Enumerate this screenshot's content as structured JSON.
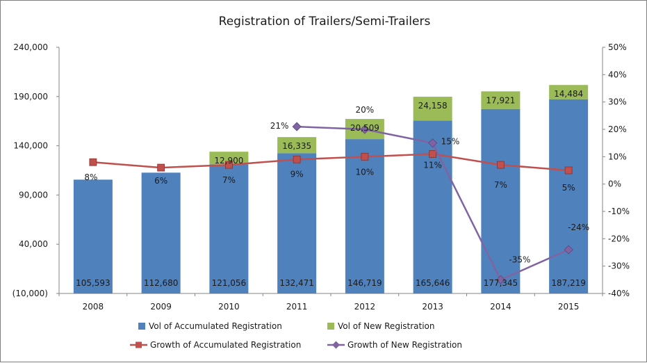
{
  "chart_data": {
    "type": "bar",
    "title": "Registration of Trailers/Semi-Trailers",
    "categories": [
      "2008",
      "2009",
      "2010",
      "2011",
      "2012",
      "2013",
      "2014",
      "2015"
    ],
    "left_axis": {
      "ylim": [
        -10000,
        240000
      ],
      "ticks": [
        -10000,
        40000,
        90000,
        140000,
        190000,
        240000
      ],
      "tick_labels": [
        "(10,000)",
        "40,000",
        "90,000",
        "140,000",
        "190,000",
        "240,000"
      ]
    },
    "right_axis": {
      "ylim": [
        -40,
        50
      ],
      "ticks": [
        -40,
        -30,
        -20,
        -10,
        0,
        10,
        20,
        30,
        40,
        50
      ],
      "tick_labels": [
        "-40%",
        "-30%",
        "-20%",
        "-10%",
        "0%",
        "10%",
        "20%",
        "30%",
        "40%",
        "50%"
      ]
    },
    "grid": false,
    "legend_position": "bottom",
    "series": [
      {
        "name": "Vol of Accumulated Registration",
        "kind": "bar",
        "axis": "left",
        "color": "#4f81bd",
        "values": [
          105593,
          112680,
          121056,
          132471,
          146719,
          165646,
          177345,
          187219
        ],
        "labels": [
          "105,593",
          "112,680",
          "121,056",
          "132,471",
          "146,719",
          "165,646",
          "177,345",
          "187,219"
        ]
      },
      {
        "name": "Vol of New Registration",
        "kind": "bar",
        "axis": "left",
        "color": "#9bbb59",
        "values": [
          null,
          null,
          12900,
          16335,
          20509,
          24158,
          17921,
          14484
        ],
        "labels": [
          null,
          null,
          "12,900",
          "16,335",
          "20,509",
          "24,158",
          "17,921",
          "14,484"
        ]
      },
      {
        "name": "Growth of Accumulated Registration",
        "kind": "line",
        "axis": "right",
        "color": "#c0504d",
        "marker": "square",
        "values": [
          8,
          6,
          7,
          9,
          10,
          11,
          7,
          5
        ],
        "labels": [
          "8%",
          "6%",
          "7%",
          "9%",
          "10%",
          "11%",
          "7%",
          "5%"
        ]
      },
      {
        "name": "Growth of New Registration",
        "kind": "line",
        "axis": "right",
        "color": "#8064a2",
        "marker": "diamond",
        "values": [
          null,
          null,
          null,
          21,
          20,
          15,
          -35,
          -24
        ],
        "labels": [
          null,
          null,
          null,
          "21%",
          "20%",
          "15%",
          "-35%",
          "-24%"
        ]
      }
    ]
  }
}
